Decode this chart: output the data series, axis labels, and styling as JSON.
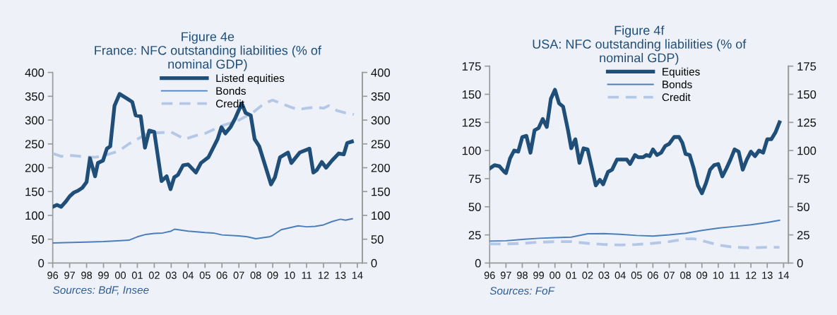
{
  "chart_data": [
    {
      "type": "line",
      "title": "Figure 4e\nFrance: NFC outstanding liabilities (% of\nnominal GDP)",
      "annotations": [
        "Sources: BdF, Insee"
      ],
      "xlim": [
        1996,
        2014.3
      ],
      "xticks": [
        {
          "value": 1996,
          "label": "96"
        },
        {
          "value": 1997,
          "label": "97"
        },
        {
          "value": 1998,
          "label": "98"
        },
        {
          "value": 1999,
          "label": "99"
        },
        {
          "value": 2000,
          "label": "00"
        },
        {
          "value": 2001,
          "label": "01"
        },
        {
          "value": 2002,
          "label": "02"
        },
        {
          "value": 2003,
          "label": "03"
        },
        {
          "value": 2004,
          "label": "04"
        },
        {
          "value": 2005,
          "label": "05"
        },
        {
          "value": 2006,
          "label": "06"
        },
        {
          "value": 2007,
          "label": "07"
        },
        {
          "value": 2008,
          "label": "08"
        },
        {
          "value": 2009,
          "label": "09"
        },
        {
          "value": 2010,
          "label": "10"
        },
        {
          "value": 2011,
          "label": "11"
        },
        {
          "value": 2012,
          "label": "12"
        },
        {
          "value": 2013,
          "label": "13"
        },
        {
          "value": 2014,
          "label": "14"
        }
      ],
      "ylim": [
        0,
        400
      ],
      "yticks": [
        0,
        50,
        100,
        150,
        200,
        250,
        300,
        350,
        400
      ],
      "y2lim": [
        0,
        400
      ],
      "y2ticks": [
        0,
        50,
        100,
        150,
        200,
        250,
        300,
        350,
        400
      ],
      "grid": false,
      "legend": "top",
      "series": [
        {
          "name": "Listed equities",
          "color": "#1f4e79",
          "line_style": "solid",
          "x": [
            1996,
            1996.25,
            1996.5,
            1996.75,
            1997,
            1997.25,
            1997.5,
            1997.75,
            1998,
            1998.2,
            1998.5,
            1998.67,
            1998.97,
            1999.2,
            1999.4,
            1999.65,
            1999.95,
            2000.4,
            2000.7,
            2000.9,
            2001.2,
            2001.45,
            2001.7,
            2002,
            2002.43,
            2002.73,
            2002.96,
            2003.18,
            2003.4,
            2003.7,
            2004,
            2004.46,
            2004.76,
            2005.2,
            2005.74,
            2005.97,
            2006.2,
            2006.5,
            2006.8,
            2007.17,
            2007.4,
            2007.7,
            2007.93,
            2008.2,
            2008.9,
            2009.13,
            2009.43,
            2009.9,
            2010.1,
            2010.6,
            2011.17,
            2011.4,
            2011.6,
            2011.9,
            2012.15,
            2012.5,
            2012.9,
            2013.2,
            2013.4,
            2013.68
          ],
          "values": [
            118,
            122,
            118,
            128,
            140,
            148,
            152,
            158,
            170,
            220,
            182,
            210,
            215,
            240,
            245,
            330,
            355,
            345,
            338,
            310,
            308,
            242,
            278,
            275,
            172,
            182,
            155,
            180,
            185,
            205,
            207,
            190,
            210,
            222,
            260,
            285,
            272,
            285,
            305,
            335,
            315,
            310,
            260,
            245,
            165,
            180,
            222,
            232,
            210,
            232,
            240,
            190,
            195,
            212,
            200,
            215,
            230,
            228,
            252,
            255
          ]
        },
        {
          "name": "Bonds",
          "color": "#4a7ebb",
          "line_style": "solid",
          "x": [
            1996,
            1998,
            1999,
            2000,
            2000.5,
            2001,
            2001.5,
            2002,
            2002.5,
            2003,
            2003.2,
            2004,
            2005,
            2005.5,
            2006,
            2007,
            2007.5,
            2008,
            2008.8,
            2009,
            2009.5,
            2010,
            2010.5,
            2011,
            2011.5,
            2012,
            2012.5,
            2013,
            2013.3,
            2013.7
          ],
          "values": [
            42,
            44,
            45,
            47,
            48,
            55,
            60,
            62,
            63,
            67,
            71,
            67,
            64,
            63,
            59,
            57,
            55,
            51,
            55,
            58,
            70,
            74,
            78,
            76,
            77,
            80,
            87,
            92,
            90,
            93
          ]
        },
        {
          "name": "Credit",
          "color": "#b4c7e7",
          "line_style": "dashed",
          "x": [
            1996,
            1996.5,
            1997,
            1998,
            1998.5,
            1999,
            1999.9,
            2000.5,
            2001,
            2001.5,
            2002,
            2003,
            2003.8,
            2004.5,
            2005,
            2005.5,
            2006,
            2007,
            2007.8,
            2008.5,
            2009,
            2009.5,
            2010,
            2010.5,
            2011,
            2011.5,
            2012,
            2012.3,
            2012.8,
            2013.3,
            2013.8
          ],
          "values": [
            230,
            224,
            226,
            223,
            222,
            225,
            235,
            250,
            260,
            270,
            273,
            275,
            260,
            268,
            272,
            280,
            288,
            300,
            315,
            335,
            342,
            335,
            328,
            322,
            325,
            327,
            325,
            330,
            320,
            315,
            312
          ]
        }
      ]
    },
    {
      "type": "line",
      "title": "Figure 4f\nUSA: NFC outstanding liabilities (% of\nnominal GDP)",
      "annotations": [
        "Sources: FoF"
      ],
      "xlim": [
        1996,
        2014.3
      ],
      "xticks": [
        {
          "value": 1996,
          "label": "96"
        },
        {
          "value": 1997,
          "label": "97"
        },
        {
          "value": 1998,
          "label": "98"
        },
        {
          "value": 1999,
          "label": "99"
        },
        {
          "value": 2000,
          "label": "00"
        },
        {
          "value": 2001,
          "label": "01"
        },
        {
          "value": 2002,
          "label": "02"
        },
        {
          "value": 2003,
          "label": "03"
        },
        {
          "value": 2004,
          "label": "04"
        },
        {
          "value": 2005,
          "label": "05"
        },
        {
          "value": 2006,
          "label": "06"
        },
        {
          "value": 2007,
          "label": "07"
        },
        {
          "value": 2008,
          "label": "08"
        },
        {
          "value": 2009,
          "label": "09"
        },
        {
          "value": 2010,
          "label": "10"
        },
        {
          "value": 2011,
          "label": "11"
        },
        {
          "value": 2012,
          "label": "12"
        },
        {
          "value": 2013,
          "label": "13"
        },
        {
          "value": 2014,
          "label": "14"
        }
      ],
      "ylim": [
        0,
        175
      ],
      "yticks": [
        0,
        25,
        50,
        75,
        100,
        125,
        150,
        175
      ],
      "y2lim": [
        0,
        175
      ],
      "y2ticks": [
        0,
        25,
        50,
        75,
        100,
        125,
        150,
        175
      ],
      "grid": false,
      "legend": "top",
      "series": [
        {
          "name": "Equities",
          "color": "#1f4e79",
          "line_style": "solid",
          "x": [
            1996,
            1996.3,
            1996.6,
            1996.9,
            1997,
            1997.25,
            1997.5,
            1997.75,
            1998,
            1998.25,
            1998.5,
            1998.75,
            1999,
            1999.25,
            1999.5,
            1999.75,
            2000,
            2000.25,
            2000.5,
            2000.8,
            2001,
            2001.25,
            2001.5,
            2001.75,
            2002,
            2002.25,
            2002.5,
            2002.75,
            2002.95,
            2003.25,
            2003.5,
            2003.8,
            2004.1,
            2004.4,
            2004.6,
            2004.9,
            2005.1,
            2005.4,
            2005.6,
            2005.8,
            2006,
            2006.25,
            2006.5,
            2006.75,
            2007,
            2007.3,
            2007.6,
            2007.8,
            2008,
            2008.25,
            2008.5,
            2008.75,
            2009,
            2009.25,
            2009.5,
            2009.75,
            2010,
            2010.25,
            2010.5,
            2010.75,
            2011,
            2011.25,
            2011.5,
            2011.75,
            2012,
            2012.25,
            2012.5,
            2012.75,
            2013,
            2013.25,
            2013.5,
            2013.75
          ],
          "values": [
            84,
            87,
            86,
            81,
            80,
            93,
            100,
            99,
            112,
            113,
            98,
            118,
            120,
            128,
            121,
            146,
            154,
            142,
            139,
            118,
            102,
            110,
            89,
            102,
            101,
            85,
            69,
            74,
            70,
            81,
            83,
            92,
            92,
            92,
            88,
            96,
            94,
            94,
            96,
            95,
            101,
            96,
            98,
            104,
            106,
            112,
            112,
            107,
            97,
            96,
            84,
            69,
            62,
            71,
            83,
            87,
            88,
            77,
            84,
            92,
            101,
            99,
            83,
            92,
            99,
            95,
            100,
            98,
            110,
            110,
            116,
            125
          ]
        },
        {
          "name": "Bonds",
          "color": "#4a7ebb",
          "line_style": "solid",
          "x": [
            1996,
            1997,
            1998,
            1999,
            2000,
            2001,
            2002,
            2003,
            2004,
            2005,
            2006,
            2007,
            2008,
            2009,
            2010,
            2011,
            2012,
            2013,
            2013.75
          ],
          "values": [
            19.5,
            19.8,
            21,
            22,
            22.5,
            23,
            26,
            26.2,
            25.5,
            24.5,
            24,
            25,
            26.5,
            29,
            31,
            32.5,
            34,
            36,
            38
          ]
        },
        {
          "name": "Credit",
          "color": "#b4c7e7",
          "line_style": "dashed",
          "x": [
            1996,
            1997,
            1998,
            1999,
            2000,
            2001,
            2002,
            2003,
            2004,
            2005,
            2006,
            2007,
            2008,
            2008.5,
            2009,
            2010,
            2011,
            2012,
            2013,
            2013.75
          ],
          "values": [
            17,
            17,
            17.5,
            18.5,
            19,
            19,
            17.5,
            16.5,
            16,
            16.5,
            17.5,
            19,
            21.5,
            21.5,
            20,
            16,
            14,
            13.5,
            14,
            14
          ]
        }
      ]
    }
  ]
}
